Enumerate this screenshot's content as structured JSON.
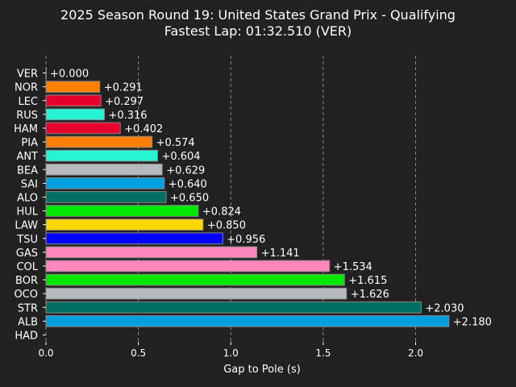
{
  "chart_data": {
    "type": "bar",
    "orientation": "horizontal",
    "title": "2025 Season Round 19: United States Grand Prix - Qualifying",
    "subtitle": "Fastest Lap: 01:32.510 (VER)",
    "xlabel": "Gap to Pole (s)",
    "ylabel": "",
    "xlim": [
      0,
      2.29
    ],
    "xticks": [
      "0.0",
      "0.5",
      "1.0",
      "1.5",
      "2.0"
    ],
    "grid": "vertical dashed",
    "categories": [
      "VER",
      "NOR",
      "LEC",
      "RUS",
      "HAM",
      "PIA",
      "ANT",
      "BEA",
      "SAI",
      "ALO",
      "HUL",
      "LAW",
      "TSU",
      "GAS",
      "COL",
      "BOR",
      "OCO",
      "STR",
      "ALB",
      "HAD"
    ],
    "values": [
      0.0,
      0.291,
      0.297,
      0.316,
      0.402,
      0.574,
      0.604,
      0.629,
      0.64,
      0.65,
      0.824,
      0.85,
      0.956,
      1.141,
      1.534,
      1.615,
      1.626,
      2.03,
      2.18,
      null
    ],
    "labels": [
      "+0.000",
      "+0.291",
      "+0.297",
      "+0.316",
      "+0.402",
      "+0.574",
      "+0.604",
      "+0.629",
      "+0.640",
      "+0.650",
      "+0.824",
      "+0.850",
      "+0.956",
      "+1.141",
      "+1.534",
      "+1.615",
      "+1.626",
      "+2.030",
      "+2.180",
      ""
    ],
    "colors": [
      "#1e41ff",
      "#ff8000",
      "#e8002d",
      "#27f4d2",
      "#e8002d",
      "#ff8000",
      "#27f4d2",
      "#b6babd",
      "#00a0de",
      "#006f62",
      "#00e701",
      "#ffd700",
      "#0000ff",
      "#ff87bc",
      "#ff87bc",
      "#00e701",
      "#b6babd",
      "#006f62",
      "#00a0de",
      "#1e41ff"
    ],
    "background": "#212121",
    "text_color": "#ffffff",
    "grid_color": "#888888"
  }
}
